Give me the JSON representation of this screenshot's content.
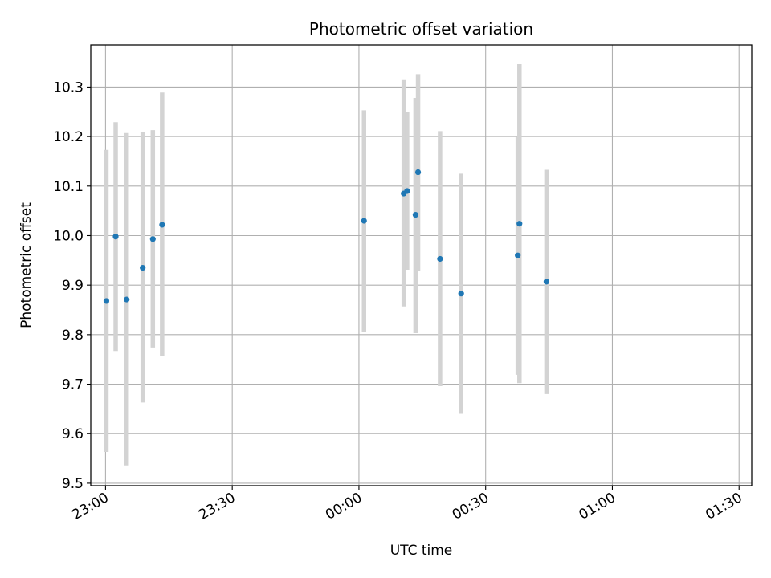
{
  "chart_data": {
    "type": "scatter",
    "title": "Photometric offset variation",
    "xlabel": "UTC time",
    "ylabel": "Photometric offset",
    "x_ticks": [
      "23:00",
      "23:30",
      "00:00",
      "00:30",
      "01:00",
      "01:30"
    ],
    "y_ticks": [
      "9.5",
      "9.6",
      "9.7",
      "9.8",
      "9.9",
      "10.0",
      "10.1",
      "10.2",
      "10.3"
    ],
    "xlim": [
      "22:56.5",
      "01:33.0"
    ],
    "ylim": [
      9.495,
      10.385
    ],
    "grid": true,
    "points": [
      {
        "time": "23:00.2",
        "value": 9.868,
        "error_low": 9.563,
        "error_high": 10.173
      },
      {
        "time": "23:02.4",
        "value": 9.998,
        "error_low": 9.767,
        "error_high": 10.229
      },
      {
        "time": "23:05.0",
        "value": 9.871,
        "error_low": 9.536,
        "error_high": 10.207
      },
      {
        "time": "23:08.8",
        "value": 9.935,
        "error_low": 9.663,
        "error_high": 10.209
      },
      {
        "time": "23:11.2",
        "value": 9.993,
        "error_low": 9.774,
        "error_high": 10.213
      },
      {
        "time": "23:13.4",
        "value": 10.022,
        "error_low": 9.757,
        "error_high": 10.289
      },
      {
        "time": "00:01.2",
        "value": 10.03,
        "error_low": 9.806,
        "error_high": 10.253
      },
      {
        "time": "00:10.6",
        "value": 10.085,
        "error_low": 9.857,
        "error_high": 10.314
      },
      {
        "time": "00:11.4",
        "value": 10.09,
        "error_low": 9.931,
        "error_high": 10.25
      },
      {
        "time": "00:13.4",
        "value": 10.042,
        "error_low": 9.803,
        "error_high": 10.278
      },
      {
        "time": "00:14.0",
        "value": 10.128,
        "error_low": 9.929,
        "error_high": 10.326
      },
      {
        "time": "00:19.2",
        "value": 9.953,
        "error_low": 9.696,
        "error_high": 10.211
      },
      {
        "time": "00:24.2",
        "value": 9.883,
        "error_low": 9.64,
        "error_high": 10.125
      },
      {
        "time": "00:37.6",
        "value": 9.96,
        "error_low": 9.719,
        "error_high": 10.199
      },
      {
        "time": "00:38.0",
        "value": 10.024,
        "error_low": 9.702,
        "error_high": 10.346
      },
      {
        "time": "00:44.4",
        "value": 9.907,
        "error_low": 9.68,
        "error_high": 10.133
      }
    ],
    "colors": {
      "marker": "#1f77b4",
      "errorbar": "#d3d3d3",
      "grid": "#b0b0b0",
      "axes": "#000000"
    }
  }
}
